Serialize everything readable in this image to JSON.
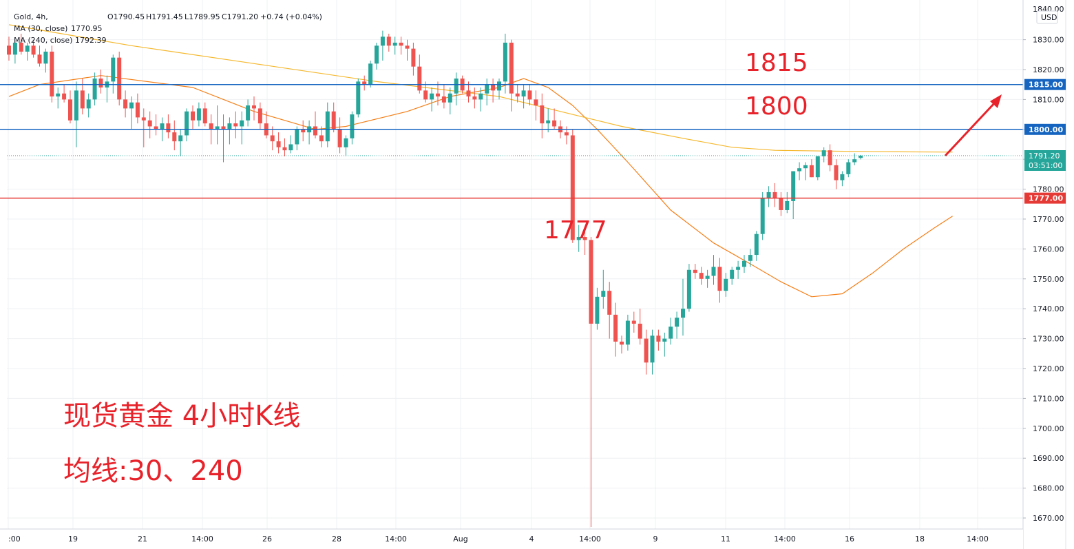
{
  "legend": {
    "symbol": "Gold, 4h,",
    "open": "O1790.45",
    "high": "H1791.45",
    "low": "L1789.95",
    "close": "C1791.20",
    "change": "+0.74 (+0.04%)",
    "ma30_label": "MA (30, close)",
    "ma30_value": "1770.95",
    "ma240_label": "MA (240, close)",
    "ma240_value": "1792.39"
  },
  "colors": {
    "up": "#26a69a",
    "down": "#ef5350",
    "ma30": "#f57f17",
    "ma240": "#f5b82e",
    "resistance": "#1565c0",
    "support": "#e53935",
    "annotation": "#e8222a",
    "grid": "#eef0f3"
  },
  "annotations": {
    "level_1815": "1815",
    "level_1800": "1800",
    "level_1777": "1777",
    "title_line1": "现货黄金 4小时K线",
    "title_line2": "均线:30、240"
  },
  "axis": {
    "currency": "USD",
    "top_partial": "1840.00",
    "price_badge": "1791.20",
    "countdown": "03:51:00"
  },
  "chart_data": {
    "type": "candlestick",
    "title": "Gold, 4h",
    "ylim": [
      1664.5,
      1841
    ],
    "y_ticks": [
      1670,
      1680,
      1690,
      1700,
      1710,
      1720,
      1730,
      1740,
      1750,
      1760,
      1770,
      1780,
      1790,
      1800,
      1810,
      1820,
      1830
    ],
    "x_tick_labels": [
      ":00",
      "19",
      "21",
      "14:00",
      "26",
      "28",
      "14:00",
      "Aug",
      "4",
      "14:00",
      "9",
      "11",
      "14:00",
      "16",
      "18",
      "14:00"
    ],
    "horizontal_levels": [
      {
        "name": "1815",
        "value": 1815,
        "label": "1815.00",
        "color": "#1565c0"
      },
      {
        "name": "1800",
        "value": 1800,
        "label": "1800.00",
        "color": "#1565c0"
      },
      {
        "name": "1777",
        "value": 1777,
        "label": "1777.00",
        "color": "#e53935"
      }
    ],
    "last_price": 1791.2,
    "candles": [
      [
        1828,
        1831,
        1823,
        1825
      ],
      [
        1825,
        1830,
        1822,
        1829
      ],
      [
        1829,
        1832,
        1825,
        1826
      ],
      [
        1826,
        1829,
        1823,
        1828
      ],
      [
        1828,
        1830,
        1824,
        1825
      ],
      [
        1825,
        1828,
        1821,
        1822
      ],
      [
        1822,
        1827,
        1819,
        1826
      ],
      [
        1826,
        1828,
        1809,
        1811
      ],
      [
        1811,
        1814,
        1807,
        1812
      ],
      [
        1812,
        1815,
        1809,
        1810
      ],
      [
        1810,
        1813,
        1802,
        1803
      ],
      [
        1803,
        1816,
        1794,
        1813
      ],
      [
        1813,
        1817,
        1805,
        1807
      ],
      [
        1807,
        1812,
        1804,
        1810
      ],
      [
        1810,
        1819,
        1808,
        1817
      ],
      [
        1817,
        1820,
        1812,
        1814
      ],
      [
        1814,
        1818,
        1809,
        1816
      ],
      [
        1816,
        1825,
        1812,
        1824
      ],
      [
        1824,
        1826,
        1808,
        1810
      ],
      [
        1810,
        1813,
        1804,
        1807
      ],
      [
        1807,
        1811,
        1800,
        1809
      ],
      [
        1809,
        1812,
        1802,
        1804
      ],
      [
        1804,
        1807,
        1794,
        1803
      ],
      [
        1803,
        1806,
        1797,
        1801
      ],
      [
        1801,
        1805,
        1798,
        1800
      ],
      [
        1800,
        1804,
        1796,
        1802
      ],
      [
        1802,
        1805,
        1797,
        1799
      ],
      [
        1799,
        1803,
        1793,
        1796
      ],
      [
        1796,
        1800,
        1791,
        1798
      ],
      [
        1798,
        1807,
        1796,
        1806
      ],
      [
        1806,
        1808,
        1800,
        1803
      ],
      [
        1803,
        1809,
        1801,
        1807
      ],
      [
        1807,
        1809,
        1801,
        1802
      ],
      [
        1802,
        1805,
        1795,
        1800
      ],
      [
        1800,
        1808,
        1795,
        1801
      ],
      [
        1801,
        1805,
        1789,
        1800
      ],
      [
        1800,
        1804,
        1795,
        1802
      ],
      [
        1802,
        1806,
        1797,
        1801
      ],
      [
        1801,
        1806,
        1795,
        1803
      ],
      [
        1803,
        1810,
        1801,
        1808
      ],
      [
        1808,
        1811,
        1803,
        1807
      ],
      [
        1807,
        1809,
        1800,
        1802
      ],
      [
        1802,
        1806,
        1797,
        1798
      ],
      [
        1798,
        1801,
        1793,
        1796
      ],
      [
        1796,
        1799,
        1792,
        1794
      ],
      [
        1794,
        1797,
        1791,
        1793
      ],
      [
        1793,
        1798,
        1792,
        1795
      ],
      [
        1795,
        1801,
        1793,
        1800
      ],
      [
        1800,
        1803,
        1796,
        1799
      ],
      [
        1799,
        1803,
        1795,
        1801
      ],
      [
        1801,
        1806,
        1797,
        1798
      ],
      [
        1798,
        1801,
        1794,
        1796
      ],
      [
        1796,
        1809,
        1794,
        1806
      ],
      [
        1806,
        1809,
        1799,
        1800
      ],
      [
        1800,
        1804,
        1792,
        1794
      ],
      [
        1794,
        1798,
        1791,
        1797
      ],
      [
        1797,
        1806,
        1795,
        1805
      ],
      [
        1805,
        1817,
        1804,
        1816
      ],
      [
        1816,
        1818,
        1813,
        1815
      ],
      [
        1815,
        1823,
        1814,
        1822
      ],
      [
        1822,
        1829,
        1820,
        1828
      ],
      [
        1828,
        1833,
        1823,
        1831
      ],
      [
        1831,
        1832,
        1826,
        1828
      ],
      [
        1828,
        1831,
        1825,
        1829
      ],
      [
        1829,
        1831,
        1825,
        1828
      ],
      [
        1828,
        1830,
        1823,
        1827
      ],
      [
        1827,
        1829,
        1818,
        1821
      ],
      [
        1821,
        1825,
        1812,
        1813
      ],
      [
        1813,
        1816,
        1809,
        1810
      ],
      [
        1810,
        1814,
        1806,
        1812
      ],
      [
        1812,
        1816,
        1808,
        1811
      ],
      [
        1811,
        1815,
        1807,
        1809
      ],
      [
        1809,
        1814,
        1805,
        1812
      ],
      [
        1812,
        1819,
        1808,
        1817
      ],
      [
        1817,
        1818,
        1812,
        1813
      ],
      [
        1813,
        1816,
        1809,
        1811
      ],
      [
        1811,
        1814,
        1807,
        1810
      ],
      [
        1810,
        1814,
        1806,
        1812
      ],
      [
        1812,
        1817,
        1808,
        1815
      ],
      [
        1815,
        1817,
        1809,
        1813
      ],
      [
        1813,
        1817,
        1810,
        1816
      ],
      [
        1816,
        1832,
        1812,
        1829
      ],
      [
        1829,
        1830,
        1806,
        1812
      ],
      [
        1812,
        1815,
        1809,
        1811
      ],
      [
        1811,
        1815,
        1807,
        1813
      ],
      [
        1813,
        1815,
        1808,
        1810
      ],
      [
        1810,
        1813,
        1803,
        1808
      ],
      [
        1808,
        1812,
        1797,
        1802
      ],
      [
        1802,
        1807,
        1799,
        1803
      ],
      [
        1803,
        1807,
        1800,
        1801
      ],
      [
        1801,
        1803,
        1797,
        1799
      ],
      [
        1799,
        1801,
        1795,
        1798
      ],
      [
        1798,
        1800,
        1762,
        1763
      ],
      [
        1763,
        1768,
        1759,
        1764
      ],
      [
        1764,
        1766,
        1758,
        1763
      ],
      [
        1763,
        1764,
        1667,
        1735
      ],
      [
        1735,
        1747,
        1733,
        1744
      ],
      [
        1744,
        1753,
        1740,
        1746
      ],
      [
        1746,
        1749,
        1730,
        1738
      ],
      [
        1738,
        1742,
        1724,
        1729
      ],
      [
        1729,
        1731,
        1725,
        1728
      ],
      [
        1728,
        1738,
        1726,
        1736
      ],
      [
        1736,
        1739,
        1732,
        1735
      ],
      [
        1735,
        1740,
        1728,
        1730
      ],
      [
        1730,
        1733,
        1718,
        1722
      ],
      [
        1722,
        1733,
        1718,
        1731
      ],
      [
        1731,
        1733,
        1726,
        1729
      ],
      [
        1729,
        1732,
        1724,
        1730
      ],
      [
        1730,
        1737,
        1728,
        1734
      ],
      [
        1734,
        1739,
        1730,
        1737
      ],
      [
        1737,
        1750,
        1731,
        1740
      ],
      [
        1740,
        1755,
        1739,
        1753
      ],
      [
        1753,
        1755,
        1750,
        1752
      ],
      [
        1752,
        1754,
        1748,
        1750
      ],
      [
        1750,
        1753,
        1747,
        1751
      ],
      [
        1751,
        1758,
        1748,
        1754
      ],
      [
        1754,
        1757,
        1742,
        1746
      ],
      [
        1746,
        1752,
        1744,
        1750
      ],
      [
        1750,
        1754,
        1748,
        1753
      ],
      [
        1753,
        1756,
        1750,
        1754
      ],
      [
        1754,
        1758,
        1752,
        1756
      ],
      [
        1756,
        1760,
        1754,
        1758
      ],
      [
        1758,
        1766,
        1756,
        1765
      ],
      [
        1765,
        1779,
        1763,
        1777
      ],
      [
        1777,
        1781,
        1774,
        1779
      ],
      [
        1779,
        1782,
        1774,
        1777
      ],
      [
        1777,
        1779,
        1771,
        1773
      ],
      [
        1773,
        1779,
        1772,
        1776
      ],
      [
        1776,
        1786,
        1770,
        1786
      ],
      [
        1786,
        1789,
        1783,
        1787
      ],
      [
        1787,
        1789,
        1783,
        1788
      ],
      [
        1788,
        1790,
        1784,
        1784
      ],
      [
        1784,
        1791,
        1783,
        1791
      ],
      [
        1791,
        1794,
        1789,
        1793
      ],
      [
        1793,
        1795,
        1786,
        1788
      ],
      [
        1788,
        1790,
        1780,
        1783
      ],
      [
        1783,
        1786,
        1781,
        1785
      ],
      [
        1785,
        1790,
        1784,
        1789
      ],
      [
        1789,
        1792,
        1788,
        1790
      ],
      [
        1790.45,
        1791.45,
        1789.95,
        1791.2
      ]
    ],
    "series": [
      {
        "name": "MA (30, close)",
        "points": [
          [
            0,
            1811
          ],
          [
            5,
            1815
          ],
          [
            15,
            1818
          ],
          [
            30,
            1814
          ],
          [
            40,
            1806
          ],
          [
            50,
            1800
          ],
          [
            55,
            1801
          ],
          [
            65,
            1806
          ],
          [
            72,
            1811
          ],
          [
            80,
            1814
          ],
          [
            84,
            1817
          ],
          [
            88,
            1814
          ],
          [
            92,
            1808
          ],
          [
            96,
            1800
          ],
          [
            101,
            1789
          ],
          [
            108,
            1773
          ],
          [
            115,
            1762
          ],
          [
            121,
            1755
          ],
          [
            126,
            1749
          ],
          [
            131,
            1744
          ],
          [
            136,
            1745
          ],
          [
            141,
            1752
          ],
          [
            146,
            1760
          ],
          [
            151,
            1767
          ],
          [
            154,
            1771
          ]
        ]
      },
      {
        "name": "MA (240, close)",
        "points": [
          [
            0,
            1835
          ],
          [
            20,
            1828
          ],
          [
            40,
            1822
          ],
          [
            60,
            1816
          ],
          [
            80,
            1811
          ],
          [
            90,
            1806
          ],
          [
            100,
            1801
          ],
          [
            110,
            1797
          ],
          [
            118,
            1794
          ],
          [
            125,
            1793
          ],
          [
            135,
            1792.7
          ],
          [
            145,
            1792.5
          ],
          [
            154,
            1792.39
          ]
        ]
      }
    ]
  }
}
